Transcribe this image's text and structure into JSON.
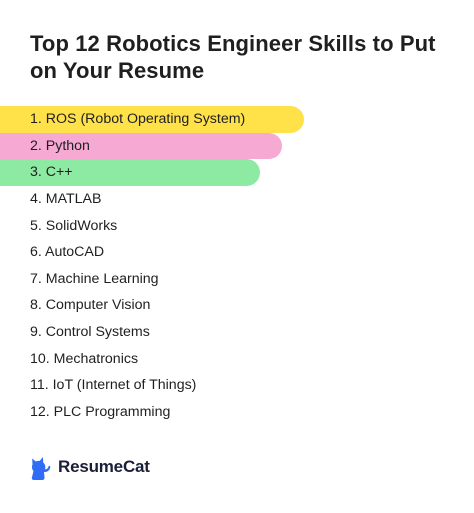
{
  "title": "Top 12 Robotics Engineer Skills to Put on Your Resume",
  "skills": [
    "1. ROS (Robot Operating System)",
    "2. Python",
    "3. C++",
    "4. MATLAB",
    "5. SolidWorks",
    "6. AutoCAD",
    "7. Machine Learning",
    "8. Computer Vision",
    "9. Control Systems",
    "10. Mechatronics",
    "11. IoT (Internet of Things)",
    "12. PLC Programming"
  ],
  "highlight_colors": [
    "#ffe14a",
    "#f5a9d3",
    "#8ceaa2"
  ],
  "brand": {
    "name": "ResumeCat",
    "icon": "cat-icon",
    "color": "#2f6df6"
  }
}
